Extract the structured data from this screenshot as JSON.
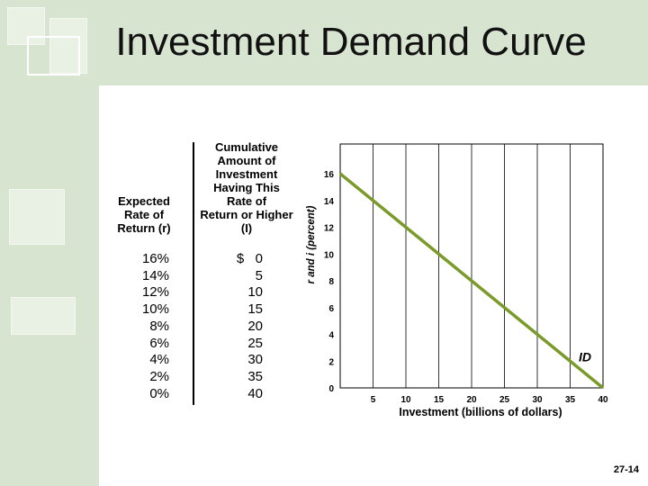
{
  "slide": {
    "title": "Investment Demand Curve",
    "slide_number": "27-14",
    "colors": {
      "band": "#d7e5d0",
      "curve": "#7a9a2a"
    }
  },
  "table": {
    "header_r": [
      "Expected",
      "Rate of",
      "Return (r)"
    ],
    "header_i": [
      "Cumulative",
      "Amount of",
      "Investment",
      "Having This",
      "Rate of",
      "Return or Higher",
      "(I)"
    ],
    "rows": [
      {
        "r": "16%",
        "i": "$   0"
      },
      {
        "r": "14%",
        "i": "5"
      },
      {
        "r": "12%",
        "i": "10"
      },
      {
        "r": "10%",
        "i": "15"
      },
      {
        "r": "8%",
        "i": "20"
      },
      {
        "r": "6%",
        "i": "25"
      },
      {
        "r": "4%",
        "i": "30"
      },
      {
        "r": "2%",
        "i": "35"
      },
      {
        "r": "0%",
        "i": "40"
      }
    ]
  },
  "chart_data": {
    "type": "line",
    "xlabel": "Investment (billions of dollars)",
    "ylabel": "r and i (percent)",
    "xlim": [
      0,
      40
    ],
    "ylim": [
      0,
      16
    ],
    "xticks": [
      5,
      10,
      15,
      20,
      25,
      30,
      35,
      40
    ],
    "yticks": [
      0,
      2,
      4,
      6,
      8,
      10,
      12,
      14,
      16
    ],
    "grid": "vertical",
    "series": [
      {
        "name": "ID",
        "x": [
          0,
          5,
          10,
          15,
          20,
          25,
          30,
          35,
          40
        ],
        "y": [
          16,
          14,
          12,
          10,
          8,
          6,
          4,
          2,
          0
        ]
      }
    ],
    "curve_label": "ID"
  }
}
